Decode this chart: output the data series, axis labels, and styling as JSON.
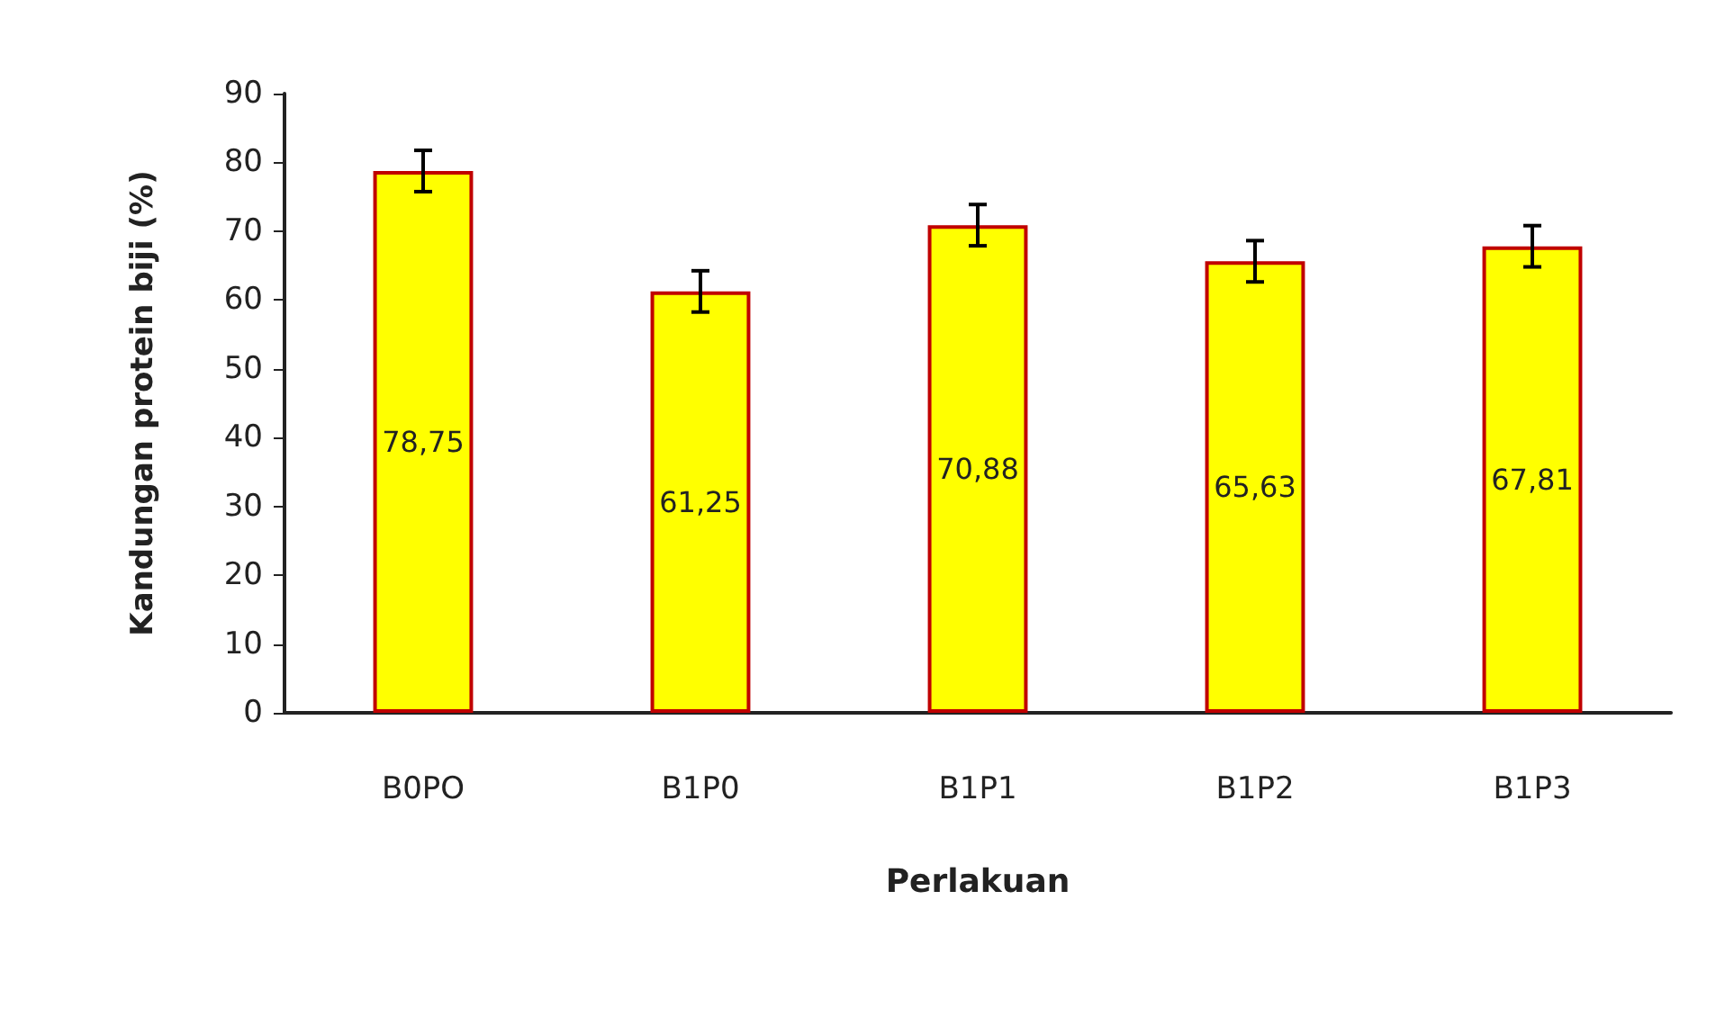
{
  "chart_data": {
    "type": "bar",
    "xlabel": "Perlakuan",
    "ylabel": "Kandungan protein biji (%)",
    "categories": [
      "B0PO",
      "B1P0",
      "B1P1",
      "B1P2",
      "B1P3"
    ],
    "values": [
      78.75,
      61.25,
      70.88,
      65.63,
      67.81
    ],
    "value_labels": [
      "78,75",
      "61,25",
      "70,88",
      "65,63",
      "67,81"
    ],
    "errors": [
      3,
      3,
      3,
      3,
      3
    ],
    "color": "#ffff00",
    "ylim": [
      0,
      90
    ],
    "yticks": [
      0,
      10,
      20,
      30,
      40,
      50,
      60,
      70,
      80,
      90
    ],
    "grid": false
  }
}
